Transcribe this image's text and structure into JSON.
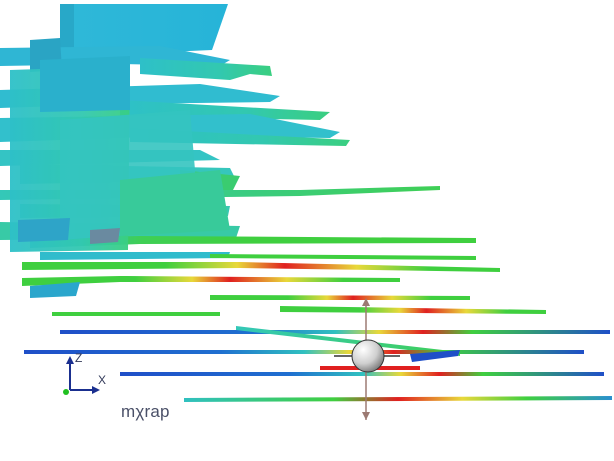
{
  "viewer": {
    "brand_text": "mχrap"
  },
  "axes": {
    "x_label": "X",
    "z_label": "Z",
    "colors": {
      "x_axis": "#1a2f8f",
      "z_axis": "#1a2f8f",
      "origin_dot": "#20c020"
    }
  },
  "colormap": {
    "low": "#1f4fc8",
    "mid_low": "#21c8c8",
    "mid": "#3fcf3f",
    "mid_high": "#e8d83a",
    "high": "#e02020"
  },
  "tool": {
    "icon": "move-gizmo-icon"
  }
}
